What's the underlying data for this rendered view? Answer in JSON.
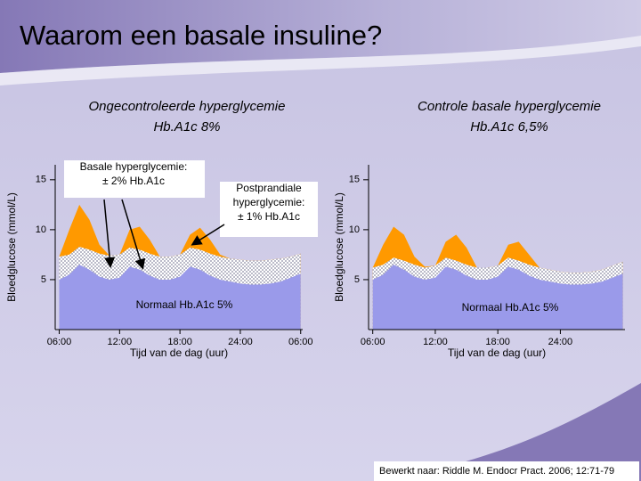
{
  "title": "Waarom een basale insuline?",
  "source": "Bewerkt naar: Riddle M. Endocr Pract. 2006; 12:71-79",
  "chart_data": [
    {
      "type": "area",
      "title": [
        "Ongecontroleerde hyperglycemie",
        "Hb.A1c 8%"
      ],
      "x_label": "Tijd van de dag (uur)",
      "y_label": "Bloedglucose (mmol/L)",
      "x": [
        6,
        7,
        8,
        9,
        10,
        11,
        12,
        13,
        14,
        15,
        16,
        17,
        18,
        19,
        20,
        21,
        22,
        23,
        24,
        25,
        26,
        27,
        28,
        29,
        30
      ],
      "series": [
        {
          "color": "#ff9900",
          "values": [
            7.3,
            10,
            12.5,
            11,
            8.5,
            7.4,
            7.5,
            10,
            10.3,
            9,
            7.3,
            7.3,
            7.5,
            9.5,
            10.2,
            9,
            7.5,
            7.1,
            7,
            6.9,
            6.9,
            7,
            7.1,
            7.3,
            7.6
          ]
        },
        {
          "color": "#b4b4c8",
          "values": [
            7.3,
            7.5,
            8.3,
            8,
            7.6,
            7.4,
            7.5,
            8.2,
            8,
            7.6,
            7.3,
            7.3,
            7.5,
            8.2,
            8,
            7.6,
            7.3,
            7.1,
            7,
            6.9,
            6.9,
            7,
            7.1,
            7.3,
            7.6
          ]
        },
        {
          "color": "#9a9aea",
          "values": [
            5,
            5.5,
            6.5,
            6,
            5.3,
            5,
            5.2,
            6.3,
            6,
            5.4,
            5,
            5,
            5.3,
            6.3,
            6,
            5.4,
            5,
            4.8,
            4.6,
            4.5,
            4.5,
            4.6,
            4.8,
            5.2,
            5.6
          ]
        }
      ],
      "xlim": [
        5.6,
        30.2
      ],
      "ylim": [
        0,
        16.5
      ],
      "xticks": [
        {
          "value": 6,
          "label": "06:00"
        },
        {
          "value": 12,
          "label": "12:00"
        },
        {
          "value": 18,
          "label": "18:00"
        },
        {
          "value": 24,
          "label": "24:00"
        },
        {
          "value": 30,
          "label": "06:00"
        }
      ],
      "yticks": [
        5,
        10,
        15
      ],
      "annotations": [
        {
          "text": [
            "Basale hyperglycemie:",
            "± 2% Hb.A1c"
          ]
        },
        {
          "text": [
            "Postprandiale",
            "hyperglycemie:",
            "± 1% Hb.A1c"
          ]
        },
        {
          "text": [
            "Normaal Hb.A1c 5%"
          ]
        }
      ]
    },
    {
      "type": "area",
      "title": [
        "Controle basale hyperglycemie",
        "Hb.A1c 6,5%"
      ],
      "x_label": "Tijd van de dag (uur)",
      "y_label": "Bloedglucose (mmol/L)",
      "x": [
        6,
        7,
        8,
        9,
        10,
        11,
        12,
        13,
        14,
        15,
        16,
        17,
        18,
        19,
        20,
        21,
        22,
        23,
        24,
        25,
        26,
        27,
        28,
        29,
        30
      ],
      "series": [
        {
          "color": "#ff9900",
          "values": [
            6.2,
            8.5,
            10.3,
            9.5,
            7.3,
            6.3,
            6.4,
            8.8,
            9.5,
            8.2,
            6.2,
            6.2,
            6.4,
            8.5,
            8.8,
            7.5,
            6.2,
            6,
            5.8,
            5.7,
            5.7,
            5.8,
            6,
            6.4,
            6.8
          ]
        },
        {
          "color": "#b4b4c8",
          "values": [
            6.2,
            6.5,
            7.2,
            6.9,
            6.5,
            6.2,
            6.4,
            7.2,
            6.9,
            6.5,
            6.2,
            6.2,
            6.4,
            7.2,
            6.9,
            6.5,
            6.2,
            6,
            5.8,
            5.7,
            5.7,
            5.8,
            6,
            6.4,
            6.8
          ]
        },
        {
          "color": "#9a9aea",
          "values": [
            5,
            5.5,
            6.5,
            6,
            5.3,
            5,
            5.2,
            6.3,
            6,
            5.4,
            5,
            5,
            5.3,
            6.3,
            6,
            5.4,
            5,
            4.8,
            4.6,
            4.5,
            4.5,
            4.6,
            4.8,
            5.2,
            5.6
          ]
        }
      ],
      "xlim": [
        5.6,
        30.2
      ],
      "ylim": [
        0,
        16.5
      ],
      "xticks": [
        {
          "value": 6,
          "label": "06:00"
        },
        {
          "value": 12,
          "label": "12:00"
        },
        {
          "value": 18,
          "label": "18:00"
        },
        {
          "value": 24,
          "label": "24:00"
        }
      ],
      "yticks": [
        5,
        10,
        15
      ],
      "annotations": [
        {
          "text": [
            "Normaal Hb.A1c 5%"
          ]
        }
      ]
    }
  ]
}
